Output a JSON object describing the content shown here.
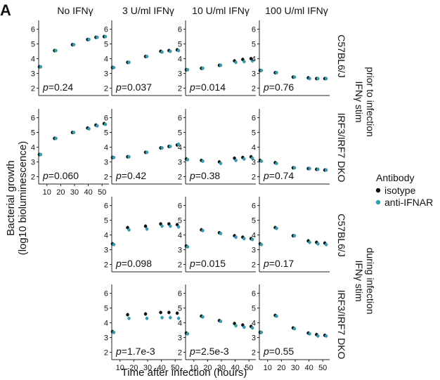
{
  "panel_letter": "A",
  "columns": [
    "No IFNγ",
    "3 U/ml IFNγ",
    "10 U/ml IFNγ",
    "100 U/ml IFNγ"
  ],
  "row_labels": [
    "C57BL6/J",
    "IRF3/IRF7 DKO",
    "C57BL6/J",
    "IRF3/IRF7 DKO"
  ],
  "group_labels": [
    [
      "IFNγ stim",
      "prior to infection"
    ],
    [
      "IFNγ stim",
      "during infection"
    ]
  ],
  "ylabel": [
    "Bacterial growth",
    "(log10 bioluminescence)"
  ],
  "xlabel": "Time after infection (hours)",
  "legend": {
    "title": "Antibody",
    "items": [
      "isotype",
      "anti-IFNAR"
    ]
  },
  "colors": {
    "isotype": "#111111",
    "anti_IFNAR": "#3a9bb0"
  },
  "chart_data": {
    "type": "scatter",
    "x_ticks": [
      10,
      20,
      30,
      40,
      50
    ],
    "y_ticks": [
      2,
      3,
      4,
      5,
      6
    ],
    "xlim": [
      4,
      55
    ],
    "ylim": [
      1.5,
      6.6
    ],
    "series_names": [
      "isotype",
      "anti-IFNAR"
    ],
    "panels": [
      {
        "row": 0,
        "col": 0,
        "p": "p=0.24",
        "x": [
          5,
          16,
          29,
          40,
          46,
          52
        ],
        "isotype": [
          3.45,
          4.55,
          4.95,
          5.3,
          5.45,
          5.5
        ],
        "anti_IFNAR": [
          3.45,
          4.55,
          4.95,
          5.3,
          5.45,
          5.5
        ]
      },
      {
        "row": 0,
        "col": 1,
        "p": "p=0.037",
        "x": [
          5,
          16,
          29,
          40,
          46,
          52
        ],
        "isotype": [
          3.4,
          3.75,
          4.15,
          4.5,
          4.55,
          4.6
        ],
        "anti_IFNAR": [
          3.4,
          3.75,
          4.15,
          4.45,
          4.5,
          4.55
        ]
      },
      {
        "row": 0,
        "col": 2,
        "p": "p=0.014",
        "x": [
          5,
          16,
          29,
          40,
          46,
          52
        ],
        "isotype": [
          3.25,
          3.35,
          3.55,
          3.85,
          3.95,
          4.0
        ],
        "anti_IFNAR": [
          3.25,
          3.35,
          3.55,
          3.75,
          3.8,
          3.85
        ]
      },
      {
        "row": 0,
        "col": 3,
        "p": "p=0.76",
        "x": [
          5,
          16,
          29,
          40,
          46,
          52
        ],
        "isotype": [
          3.2,
          3.05,
          2.75,
          2.7,
          2.65,
          2.65
        ],
        "anti_IFNAR": [
          3.2,
          3.05,
          2.75,
          2.65,
          2.65,
          2.65
        ]
      },
      {
        "row": 1,
        "col": 0,
        "p": "p=0.060",
        "x": [
          5,
          16,
          29,
          40,
          46,
          52
        ],
        "isotype": [
          3.5,
          4.6,
          5.0,
          5.3,
          5.5,
          5.6
        ],
        "anti_IFNAR": [
          3.5,
          4.6,
          5.0,
          5.25,
          5.45,
          5.55
        ]
      },
      {
        "row": 1,
        "col": 1,
        "p": "p=0.42",
        "x": [
          5,
          16,
          29,
          40,
          46,
          52
        ],
        "isotype": [
          3.3,
          3.35,
          3.65,
          3.95,
          4.05,
          4.15
        ],
        "anti_IFNAR": [
          3.3,
          3.35,
          3.65,
          3.95,
          4.05,
          4.2
        ]
      },
      {
        "row": 1,
        "col": 2,
        "p": "p=0.38",
        "x": [
          5,
          16,
          29,
          40,
          46,
          52
        ],
        "isotype": [
          3.2,
          3.1,
          3.0,
          3.25,
          3.3,
          3.35
        ],
        "anti_IFNAR": [
          3.15,
          3.05,
          2.9,
          3.1,
          3.2,
          3.25
        ]
      },
      {
        "row": 1,
        "col": 3,
        "p": "p=0.74",
        "x": [
          5,
          16,
          29,
          40,
          46,
          52
        ],
        "isotype": [
          3.1,
          2.95,
          2.6,
          2.55,
          2.5,
          2.45
        ],
        "anti_IFNAR": [
          3.05,
          2.9,
          2.6,
          2.55,
          2.5,
          2.45
        ]
      },
      {
        "row": 2,
        "col": 1,
        "p": "p=0.098",
        "x": [
          5,
          16,
          29,
          40,
          46,
          52
        ],
        "isotype": [
          3.4,
          4.5,
          4.6,
          4.75,
          4.75,
          4.7
        ],
        "anti_IFNAR": [
          3.35,
          4.35,
          4.4,
          4.6,
          4.6,
          4.55
        ]
      },
      {
        "row": 2,
        "col": 2,
        "p": "p=0.015",
        "x": [
          5,
          16,
          29,
          40,
          46,
          52
        ],
        "isotype": [
          3.25,
          4.35,
          4.15,
          3.95,
          3.85,
          3.75
        ],
        "anti_IFNAR": [
          3.2,
          4.3,
          4.1,
          3.85,
          3.75,
          3.7
        ]
      },
      {
        "row": 2,
        "col": 3,
        "p": "p=0.17",
        "x": [
          5,
          16,
          29,
          40,
          46,
          52
        ],
        "isotype": [
          3.4,
          4.5,
          3.95,
          3.6,
          3.5,
          3.45
        ],
        "anti_IFNAR": [
          3.35,
          4.45,
          3.95,
          3.5,
          3.4,
          3.35
        ]
      },
      {
        "row": 3,
        "col": 1,
        "p": "p=1.7e-3",
        "x": [
          5,
          16,
          29,
          40,
          46,
          52
        ],
        "isotype": [
          3.4,
          4.55,
          4.6,
          4.7,
          4.7,
          4.65
        ],
        "anti_IFNAR": [
          3.35,
          4.3,
          4.3,
          4.35,
          4.35,
          4.3
        ]
      },
      {
        "row": 3,
        "col": 2,
        "p": "p=2.5e-3",
        "x": [
          5,
          16,
          29,
          40,
          46,
          52
        ],
        "isotype": [
          3.3,
          4.45,
          4.15,
          3.95,
          3.85,
          3.75
        ],
        "anti_IFNAR": [
          3.25,
          4.4,
          4.1,
          3.8,
          3.7,
          3.65
        ]
      },
      {
        "row": 3,
        "col": 3,
        "p": "p=0.55",
        "x": [
          5,
          16,
          29,
          40,
          46,
          52
        ],
        "isotype": [
          3.35,
          4.5,
          3.65,
          3.3,
          3.2,
          3.15
        ],
        "anti_IFNAR": [
          3.35,
          4.45,
          3.6,
          3.25,
          3.1,
          3.1
        ]
      }
    ]
  }
}
